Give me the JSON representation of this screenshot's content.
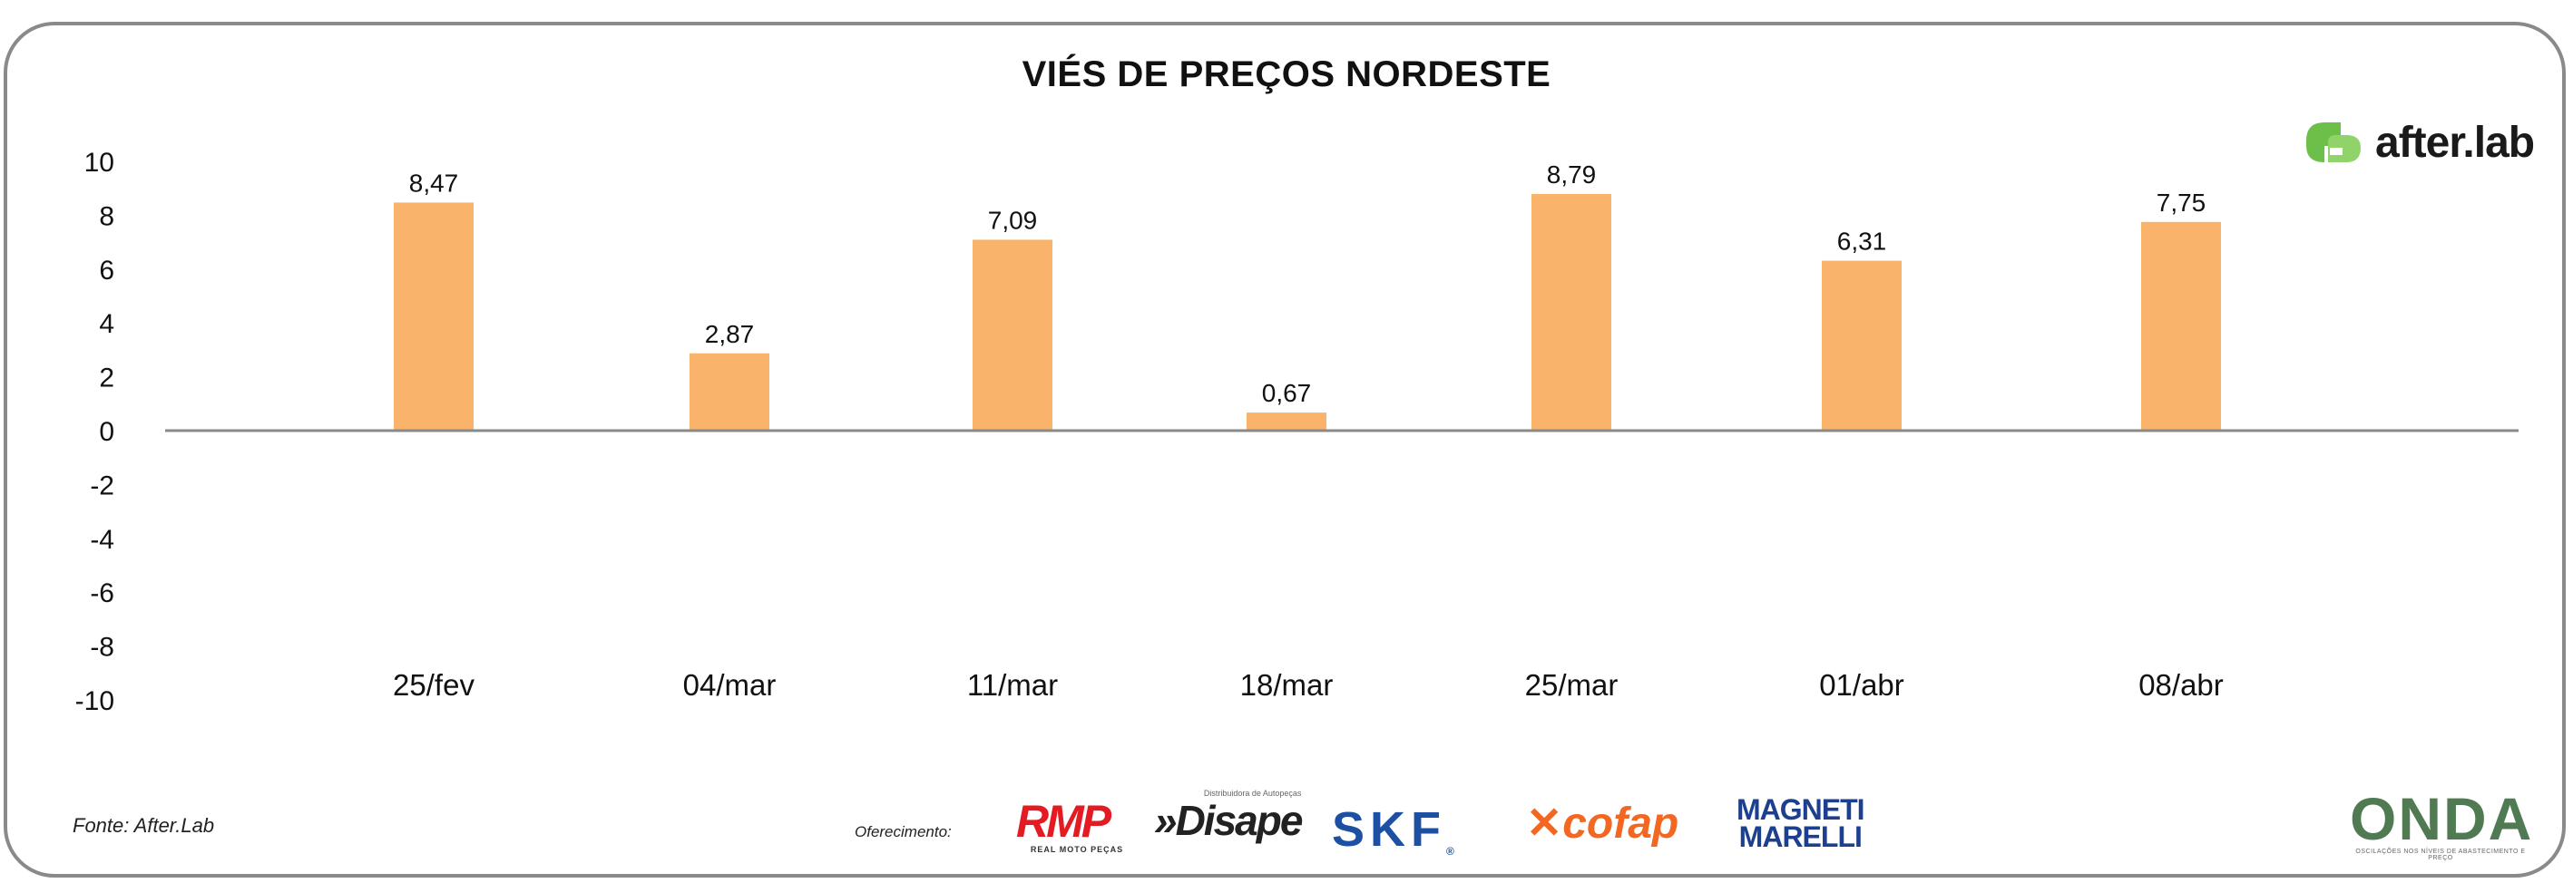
{
  "title": "VIÉS DE PREÇOS NORDESTE",
  "brand": {
    "name": "after.lab",
    "accent": "#6cc04a"
  },
  "source": "Fonte: After.Lab",
  "sponsors_label": "Oferecimento:",
  "sponsors": {
    "rmp": "RMP",
    "rmp_sub": "REAL MOTO PEÇAS",
    "disape_sub": "Distribuidora de Autopeças",
    "disape": "»Disape",
    "skf": "SKF",
    "cofap": "cofap",
    "magneti_1": "MAGNETI",
    "magneti_2": "MARELLI"
  },
  "onda": {
    "name": "ONDA",
    "sub": "OSCILAÇÕES NOS NÍVEIS DE ABASTECIMENTO E PREÇO"
  },
  "chart_data": {
    "type": "bar",
    "title": "VIÉS DE PREÇOS NORDESTE",
    "categories": [
      "25/fev",
      "04/mar",
      "11/mar",
      "18/mar",
      "25/mar",
      "01/abr",
      "08/abr"
    ],
    "values": [
      8.47,
      2.87,
      7.09,
      0.67,
      8.79,
      6.31,
      7.75
    ],
    "value_labels": [
      "8,47",
      "2,87",
      "7,09",
      "0,67",
      "8,79",
      "6,31",
      "7,75"
    ],
    "yticks": [
      "10",
      "8",
      "6",
      "4",
      "2",
      "0",
      "-2",
      "-4",
      "-6",
      "-8",
      "-10"
    ],
    "ylim": [
      -10,
      10
    ],
    "bar_color": "#f9b36b",
    "grid": false,
    "xlabel": "",
    "ylabel": ""
  }
}
